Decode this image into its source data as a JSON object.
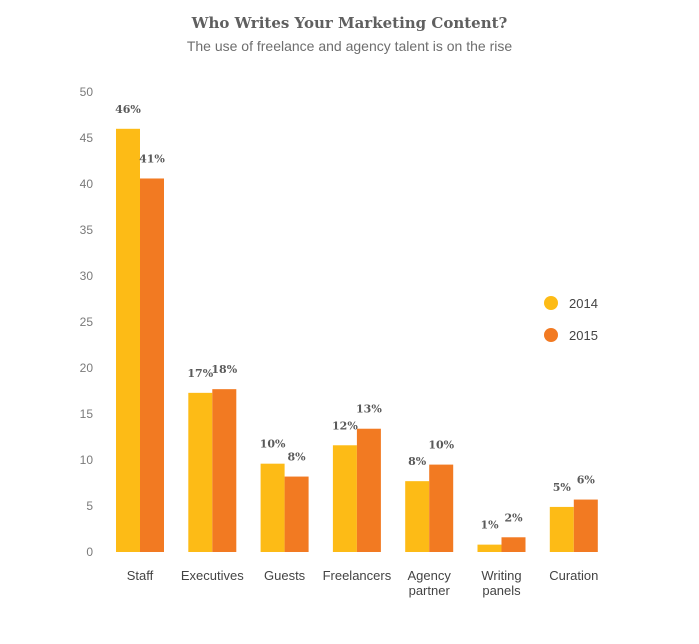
{
  "header": {
    "title": "Who Writes Your Marketing Content?",
    "subtitle": "The use of freelance and agency talent is on the rise"
  },
  "chart_data": {
    "type": "bar",
    "title": "Who Writes Your Marketing Content?",
    "subtitle": "The use of freelance and agency talent is on the rise",
    "categories": [
      [
        "Staff"
      ],
      [
        "Executives"
      ],
      [
        "Guests"
      ],
      [
        "Freelancers"
      ],
      [
        "Agency",
        "partner"
      ],
      [
        "Writing",
        "panels"
      ],
      [
        "Curation"
      ]
    ],
    "series": [
      {
        "name": "2014",
        "color": "#FDBB16",
        "values": [
          46,
          17.3,
          9.6,
          11.6,
          7.7,
          0.8,
          4.9
        ],
        "labels": [
          "46%",
          "17%",
          "10%",
          "12%",
          "8%",
          "1%",
          "5%"
        ]
      },
      {
        "name": "2015",
        "color": "#F27A22",
        "values": [
          40.6,
          17.7,
          8.2,
          13.4,
          9.5,
          1.6,
          5.7
        ],
        "labels": [
          "41%",
          "18%",
          "8%",
          "13%",
          "10%",
          "2%",
          "6%"
        ]
      }
    ],
    "yticks": [
      0,
      5,
      10,
      15,
      20,
      25,
      30,
      35,
      40,
      45,
      50
    ],
    "ylim": [
      0,
      50
    ],
    "xlabel": "",
    "ylabel": "",
    "grid": false,
    "legend_position": "right"
  }
}
